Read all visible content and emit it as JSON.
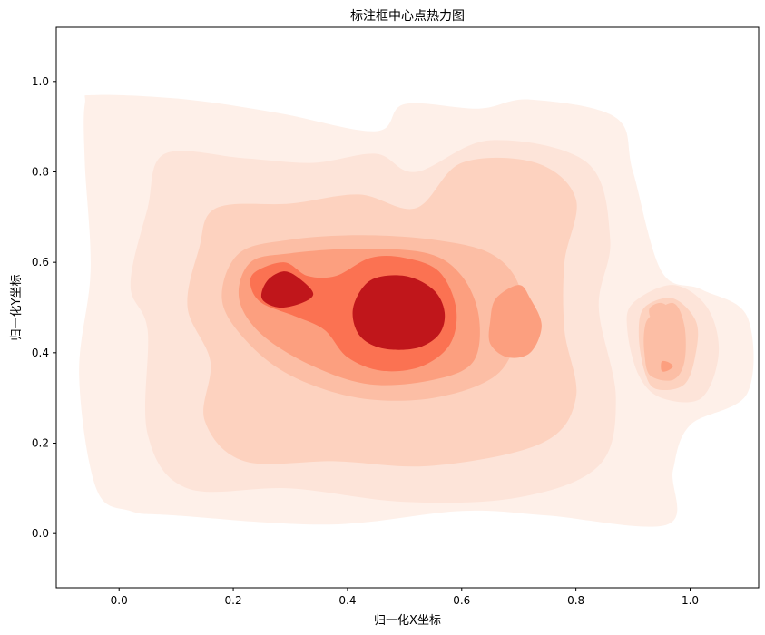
{
  "chart_data": {
    "type": "heatmap",
    "subtype": "kde-contourf",
    "title": "标注框中心点热力图",
    "xlabel": "归一化X坐标",
    "ylabel": "归一化Y坐标",
    "xlim": [
      -0.11,
      1.12
    ],
    "ylim": [
      -0.12,
      1.12
    ],
    "xticks": [
      0.0,
      0.2,
      0.4,
      0.6,
      0.8,
      1.0
    ],
    "yticks": [
      0.0,
      0.2,
      0.4,
      0.6,
      0.8,
      1.0
    ],
    "xtick_labels": [
      "0.0",
      "0.2",
      "0.4",
      "0.6",
      "0.8",
      "1.0"
    ],
    "ytick_labels": [
      "0.0",
      "0.2",
      "0.4",
      "0.6",
      "0.8",
      "1.0"
    ],
    "colormap": "Reds",
    "colors": [
      "#fef0e9",
      "#fde4d9",
      "#fdd2bf",
      "#fcbea5",
      "#fc9f7f",
      "#fb7252",
      "#c0161b"
    ],
    "grid": false,
    "legend": "none",
    "density_levels": [
      {
        "level": 1,
        "color": "#fef0e9",
        "outline": [
          [
            -0.04,
            0.97
          ],
          [
            0.12,
            0.96
          ],
          [
            0.28,
            0.93
          ],
          [
            0.45,
            0.89
          ],
          [
            0.5,
            0.95
          ],
          [
            0.63,
            0.94
          ],
          [
            0.72,
            0.96
          ],
          [
            0.87,
            0.92
          ],
          [
            0.9,
            0.8
          ],
          [
            0.95,
            0.58
          ],
          [
            1.02,
            0.54
          ],
          [
            1.1,
            0.48
          ],
          [
            1.1,
            0.31
          ],
          [
            1.0,
            0.24
          ],
          [
            0.97,
            0.14
          ],
          [
            0.96,
            0.02
          ],
          [
            0.75,
            0.04
          ],
          [
            0.6,
            0.05
          ],
          [
            0.37,
            0.02
          ],
          [
            0.1,
            0.04
          ],
          [
            0.02,
            0.05
          ],
          [
            -0.04,
            0.1
          ],
          [
            -0.07,
            0.35
          ],
          [
            -0.05,
            0.58
          ],
          [
            -0.06,
            0.82
          ],
          [
            -0.06,
            0.95
          ]
        ]
      },
      {
        "level": 2,
        "color": "#fde4d9",
        "outline": [
          [
            0.08,
            0.84
          ],
          [
            0.22,
            0.83
          ],
          [
            0.34,
            0.82
          ],
          [
            0.45,
            0.84
          ],
          [
            0.52,
            0.8
          ],
          [
            0.65,
            0.87
          ],
          [
            0.82,
            0.82
          ],
          [
            0.86,
            0.65
          ],
          [
            0.84,
            0.5
          ],
          [
            0.87,
            0.3
          ],
          [
            0.84,
            0.15
          ],
          [
            0.7,
            0.08
          ],
          [
            0.5,
            0.07
          ],
          [
            0.3,
            0.1
          ],
          [
            0.12,
            0.1
          ],
          [
            0.05,
            0.22
          ],
          [
            0.05,
            0.45
          ],
          [
            0.02,
            0.55
          ],
          [
            0.05,
            0.72
          ]
        ]
      },
      {
        "level": 2,
        "color": "#fde4d9",
        "outline": [
          [
            0.9,
            0.51
          ],
          [
            0.97,
            0.55
          ],
          [
            1.03,
            0.5
          ],
          [
            1.05,
            0.4
          ],
          [
            1.02,
            0.3
          ],
          [
            0.95,
            0.3
          ],
          [
            0.91,
            0.35
          ],
          [
            0.89,
            0.45
          ]
        ]
      },
      {
        "level": 3,
        "color": "#fdd2bf",
        "outline": [
          [
            0.17,
            0.72
          ],
          [
            0.3,
            0.73
          ],
          [
            0.42,
            0.75
          ],
          [
            0.52,
            0.72
          ],
          [
            0.6,
            0.82
          ],
          [
            0.73,
            0.82
          ],
          [
            0.8,
            0.74
          ],
          [
            0.78,
            0.6
          ],
          [
            0.78,
            0.45
          ],
          [
            0.8,
            0.3
          ],
          [
            0.74,
            0.2
          ],
          [
            0.55,
            0.15
          ],
          [
            0.38,
            0.16
          ],
          [
            0.22,
            0.16
          ],
          [
            0.15,
            0.25
          ],
          [
            0.16,
            0.38
          ],
          [
            0.12,
            0.5
          ],
          [
            0.14,
            0.63
          ]
        ]
      },
      {
        "level": 3,
        "color": "#fdd2bf",
        "outline": [
          [
            0.92,
            0.5
          ],
          [
            0.97,
            0.52
          ],
          [
            1.01,
            0.47
          ],
          [
            1.01,
            0.4
          ],
          [
            0.99,
            0.33
          ],
          [
            0.94,
            0.32
          ],
          [
            0.92,
            0.36
          ],
          [
            0.91,
            0.44
          ]
        ]
      },
      {
        "level": 4,
        "color": "#fcbea5",
        "outline": [
          [
            0.21,
            0.62
          ],
          [
            0.3,
            0.65
          ],
          [
            0.42,
            0.66
          ],
          [
            0.55,
            0.65
          ],
          [
            0.65,
            0.62
          ],
          [
            0.7,
            0.55
          ],
          [
            0.7,
            0.45
          ],
          [
            0.66,
            0.35
          ],
          [
            0.55,
            0.3
          ],
          [
            0.42,
            0.3
          ],
          [
            0.3,
            0.35
          ],
          [
            0.22,
            0.43
          ],
          [
            0.18,
            0.52
          ]
        ]
      },
      {
        "level": 4,
        "color": "#fcbea5",
        "outline": [
          [
            0.93,
            0.48
          ],
          [
            0.97,
            0.51
          ],
          [
            0.99,
            0.46
          ],
          [
            0.99,
            0.38
          ],
          [
            0.97,
            0.34
          ],
          [
            0.93,
            0.35
          ],
          [
            0.92,
            0.4
          ],
          [
            0.92,
            0.45
          ]
        ]
      },
      {
        "level": 5,
        "color": "#fc9f7f",
        "outline": [
          [
            0.23,
            0.6
          ],
          [
            0.3,
            0.62
          ],
          [
            0.42,
            0.63
          ],
          [
            0.54,
            0.62
          ],
          [
            0.6,
            0.57
          ],
          [
            0.63,
            0.48
          ],
          [
            0.62,
            0.38
          ],
          [
            0.55,
            0.34
          ],
          [
            0.44,
            0.33
          ],
          [
            0.34,
            0.37
          ],
          [
            0.25,
            0.44
          ],
          [
            0.21,
            0.52
          ]
        ]
      },
      {
        "level": 5,
        "color": "#fc9f7f",
        "outline": [
          [
            0.66,
            0.52
          ],
          [
            0.7,
            0.55
          ],
          [
            0.72,
            0.52
          ],
          [
            0.74,
            0.46
          ],
          [
            0.72,
            0.4
          ],
          [
            0.68,
            0.39
          ],
          [
            0.65,
            0.42
          ],
          [
            0.65,
            0.47
          ]
        ]
      },
      {
        "level": 6,
        "color": "#fb7252",
        "outline": [
          [
            0.24,
            0.58
          ],
          [
            0.29,
            0.6
          ],
          [
            0.33,
            0.57
          ],
          [
            0.38,
            0.57
          ],
          [
            0.44,
            0.61
          ],
          [
            0.5,
            0.61
          ],
          [
            0.56,
            0.58
          ],
          [
            0.59,
            0.5
          ],
          [
            0.58,
            0.42
          ],
          [
            0.53,
            0.37
          ],
          [
            0.46,
            0.36
          ],
          [
            0.4,
            0.39
          ],
          [
            0.36,
            0.45
          ],
          [
            0.31,
            0.48
          ],
          [
            0.25,
            0.51
          ],
          [
            0.23,
            0.55
          ]
        ]
      },
      {
        "level": 7,
        "color": "#c0161b",
        "outline": [
          [
            0.26,
            0.56
          ],
          [
            0.29,
            0.58
          ],
          [
            0.32,
            0.56
          ],
          [
            0.34,
            0.53
          ],
          [
            0.32,
            0.51
          ],
          [
            0.28,
            0.5
          ],
          [
            0.25,
            0.52
          ]
        ]
      },
      {
        "level": 7,
        "color": "#c0161b",
        "outline": [
          [
            0.44,
            0.56
          ],
          [
            0.5,
            0.57
          ],
          [
            0.55,
            0.54
          ],
          [
            0.57,
            0.49
          ],
          [
            0.56,
            0.44
          ],
          [
            0.52,
            0.41
          ],
          [
            0.46,
            0.41
          ],
          [
            0.42,
            0.44
          ],
          [
            0.41,
            0.5
          ]
        ]
      },
      {
        "level": 4,
        "color": "#fcbea5",
        "outline": [
          [
            0.93,
            0.5
          ],
          [
            0.95,
            0.51
          ],
          [
            0.97,
            0.49
          ],
          [
            0.96,
            0.47
          ],
          [
            0.94,
            0.47
          ],
          [
            0.93,
            0.48
          ]
        ]
      },
      {
        "level": 5,
        "color": "#fc9f7f",
        "outline": [
          [
            0.95,
            0.38
          ],
          [
            0.96,
            0.38
          ],
          [
            0.97,
            0.37
          ],
          [
            0.96,
            0.36
          ],
          [
            0.95,
            0.36
          ]
        ]
      }
    ]
  }
}
